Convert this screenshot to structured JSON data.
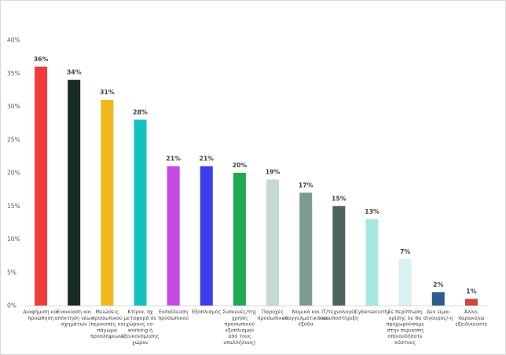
{
  "chart_data": {
    "type": "bar",
    "title": "",
    "xlabel": "",
    "ylabel": "",
    "ylim": [
      0,
      40
    ],
    "yticks": [
      "0%",
      "5%",
      "10%",
      "15%",
      "20%",
      "25%",
      "30%",
      "35%",
      "40%"
    ],
    "grid": false,
    "categories": [
      [
        "Διαφήμιση και",
        "προώθηση"
      ],
      [
        "Ενοικίαση και",
        "απόκτηση νέων",
        "σχημάτων"
      ],
      [
        "Μειώσεις",
        "προσωπικού",
        "(περικοπές και",
        "πάγωμα",
        "προσλήψεων)"
      ],
      [
        "Κτίρια, πχ",
        "μεταφορά σε",
        "χώρους co-",
        "working ή",
        "εξοικονόμησης",
        "χώρου"
      ],
      [
        "Εκπαίδευση",
        "προσωπικού"
      ],
      [
        "Εξοπλισμός"
      ],
      [
        "Συσκευές/της",
        "χρήση",
        "προσωπικού",
        "εξοπλισμού",
        "από τους",
        "υπαλλήλους)"
      ],
      [
        "Παροχές",
        "προσωπικού"
      ],
      [
        "Νομικά και",
        "επαγγελματικά και",
        "έξοδα"
      ],
      [
        "IT/τεχνολογία",
        "και υποστήριξη"
      ],
      [
        "Cybersecurity"
      ],
      [
        "Σε περίπτωση",
        "κρίσης δε θα",
        "προχωρούσαμε",
        "στην περικοπή",
        "οποιουδήποτε",
        "κόστους"
      ],
      [
        "Δεν είμαι",
        "σίγουρος/-η"
      ],
      [
        "Άλλο,",
        "παρακαλώ",
        "εξειδικεύστε"
      ]
    ],
    "values": [
      36,
      34,
      31,
      28,
      21,
      21,
      20,
      19,
      17,
      15,
      13,
      7,
      2,
      1
    ],
    "value_labels": [
      "36%",
      "34%",
      "31%",
      "28%",
      "21%",
      "21%",
      "20%",
      "19%",
      "17%",
      "15%",
      "13%",
      "7%",
      "2%",
      "1%"
    ],
    "colors": [
      "#f23b3b",
      "#1a2b26",
      "#f0b81c",
      "#12c2c0",
      "#c54ae3",
      "#3d3ded",
      "#1fab4f",
      "#c2d9d6",
      "#7d9a92",
      "#4f645e",
      "#a8e8de",
      "#d9f2ef",
      "#2e5c91",
      "#c8473f"
    ]
  }
}
